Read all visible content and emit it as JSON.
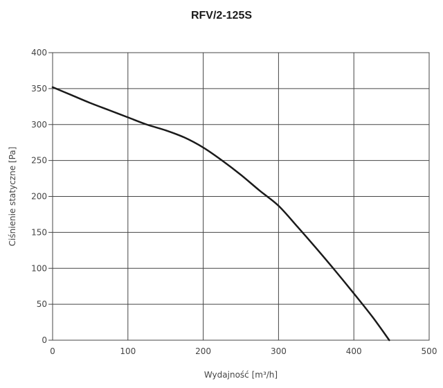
{
  "chart_data": {
    "type": "line",
    "title": "RFV/2-125S",
    "xlabel": "Wydajność [m³/h]",
    "ylabel": "Ciśnienie statyczne [Pa]",
    "xlim": [
      0,
      500
    ],
    "ylim": [
      0,
      400
    ],
    "xticks": [
      "0",
      "100",
      "200",
      "300",
      "400",
      "500"
    ],
    "yticks": [
      "0",
      "50",
      "100",
      "150",
      "200",
      "250",
      "300",
      "350",
      "400"
    ],
    "grid": true,
    "series": [
      {
        "x": [
          0,
          25,
          50,
          75,
          100,
          125,
          150,
          175,
          200,
          225,
          250,
          275,
          300,
          325,
          350,
          375,
          400,
          425,
          447
        ],
        "y": [
          352,
          341,
          330,
          320,
          310,
          300,
          292,
          282,
          268,
          250,
          230,
          208,
          187,
          158,
          128,
          97,
          65,
          32,
          0
        ],
        "color": "#1a1a1a"
      }
    ]
  }
}
